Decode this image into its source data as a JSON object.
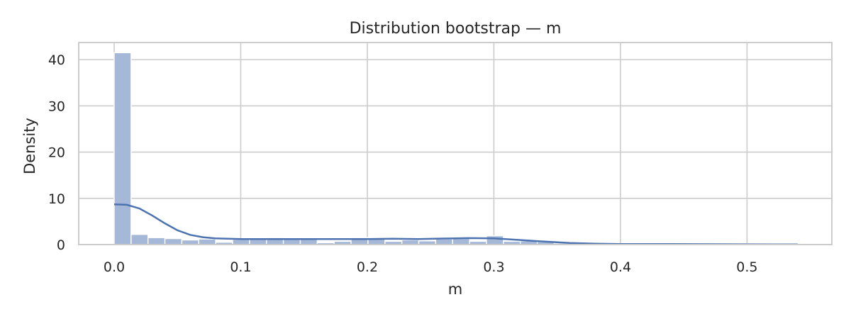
{
  "chart_data": {
    "type": "bar",
    "title": "Distribution bootstrap — m",
    "xlabel": "m",
    "ylabel": "Density",
    "xlim": [
      -0.028,
      0.567
    ],
    "ylim": [
      0,
      43.7
    ],
    "xticks": [
      0.0,
      0.1,
      0.2,
      0.3,
      0.4,
      0.5
    ],
    "xtick_labels": [
      "0.0",
      "0.1",
      "0.2",
      "0.3",
      "0.4",
      "0.5"
    ],
    "yticks": [
      0,
      10,
      20,
      30,
      40
    ],
    "ytick_labels": [
      "0",
      "10",
      "20",
      "30",
      "40"
    ],
    "grid": true,
    "legend": "none",
    "bar_color": "#a5b8d8",
    "kde_color": "#4c72b0",
    "bin_start": 0.0,
    "bin_width": 0.01337,
    "values": [
      41.5,
      2.2,
      1.5,
      1.3,
      1.0,
      1.2,
      0.5,
      1.1,
      1.1,
      1.5,
      1.1,
      1.1,
      0.4,
      0.7,
      1.5,
      1.2,
      0.7,
      1.0,
      0.8,
      1.2,
      1.3,
      0.7,
      1.9,
      0.7,
      0.8,
      0.6,
      0.3,
      0.3,
      0.2,
      0.2,
      0.2,
      0.2,
      0.2,
      0.2,
      0.2,
      0.2,
      0.2,
      0.2,
      0.2,
      0.2
    ],
    "kde": {
      "x": [
        0.0,
        0.01,
        0.02,
        0.03,
        0.04,
        0.05,
        0.06,
        0.07,
        0.08,
        0.1,
        0.12,
        0.14,
        0.16,
        0.18,
        0.2,
        0.22,
        0.24,
        0.26,
        0.28,
        0.3,
        0.32,
        0.34,
        0.36,
        0.38,
        0.4,
        0.44,
        0.48,
        0.52,
        0.54
      ],
      "y": [
        8.7,
        8.6,
        7.8,
        6.3,
        4.6,
        3.1,
        2.1,
        1.6,
        1.35,
        1.2,
        1.2,
        1.2,
        1.2,
        1.2,
        1.2,
        1.25,
        1.2,
        1.3,
        1.4,
        1.35,
        1.0,
        0.65,
        0.35,
        0.2,
        0.12,
        0.1,
        0.08,
        0.05,
        0.03
      ]
    }
  }
}
